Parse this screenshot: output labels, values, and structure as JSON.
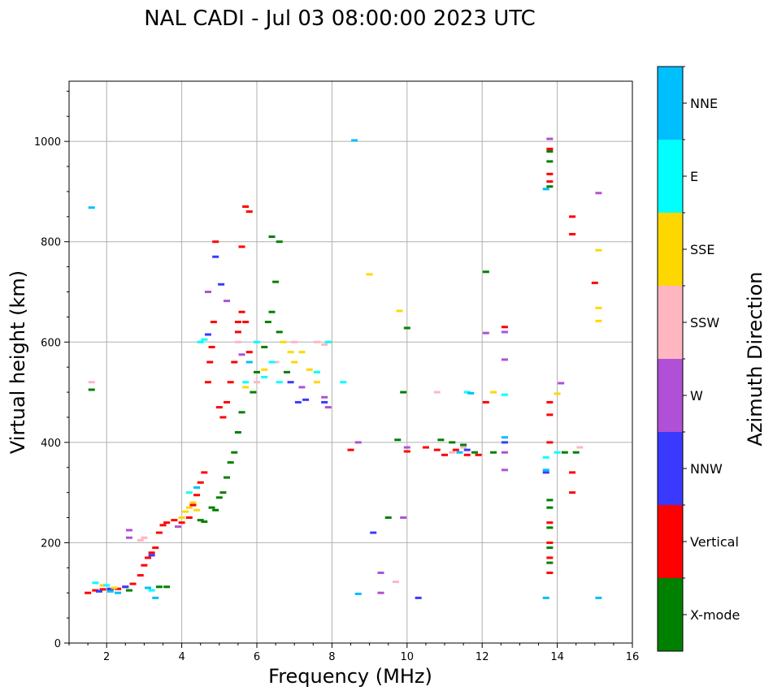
{
  "chart_data": {
    "type": "scatter",
    "title": "NAL CADI - Jul 03 08:00:00 2023 UTC",
    "xlabel": "Frequency (MHz)",
    "ylabel": "Virtual height (km)",
    "xlim": [
      1,
      16
    ],
    "ylim": [
      0,
      1120
    ],
    "xticks": [
      2,
      4,
      6,
      8,
      10,
      12,
      14,
      16
    ],
    "yticks": [
      0,
      200,
      400,
      600,
      800,
      1000
    ],
    "grid": true,
    "colorbar": {
      "label": "Azimuth Direction",
      "categories": [
        {
          "name": "X-mode",
          "color": "#008000"
        },
        {
          "name": "Vertical",
          "color": "#ff0000"
        },
        {
          "name": "NNW",
          "color": "#3a3aff"
        },
        {
          "name": "W",
          "color": "#b050d6"
        },
        {
          "name": "SSW",
          "color": "#ffb6c1"
        },
        {
          "name": "SSE",
          "color": "#ffd700"
        },
        {
          "name": "E",
          "color": "#00ffff"
        },
        {
          "name": "NNE",
          "color": "#00bfff"
        }
      ]
    },
    "series": [
      {
        "name": "Vertical",
        "points": [
          [
            1.5,
            100
          ],
          [
            1.7,
            105
          ],
          [
            1.9,
            107
          ],
          [
            2.1,
            107
          ],
          [
            2.3,
            108
          ],
          [
            2.5,
            112
          ],
          [
            2.7,
            118
          ],
          [
            2.9,
            135
          ],
          [
            3.0,
            155
          ],
          [
            3.1,
            170
          ],
          [
            3.2,
            180
          ],
          [
            3.3,
            190
          ],
          [
            3.4,
            220
          ],
          [
            3.5,
            235
          ],
          [
            3.6,
            240
          ],
          [
            3.8,
            245
          ],
          [
            4.0,
            240
          ],
          [
            4.2,
            250
          ],
          [
            4.3,
            275
          ],
          [
            4.4,
            295
          ],
          [
            4.5,
            320
          ],
          [
            4.6,
            340
          ],
          [
            4.7,
            520
          ],
          [
            4.75,
            560
          ],
          [
            4.8,
            590
          ],
          [
            4.85,
            640
          ],
          [
            4.9,
            800
          ],
          [
            5.0,
            470
          ],
          [
            5.1,
            450
          ],
          [
            5.2,
            480
          ],
          [
            5.3,
            520
          ],
          [
            5.4,
            560
          ],
          [
            5.5,
            640
          ],
          [
            5.6,
            660
          ],
          [
            5.7,
            640
          ],
          [
            5.8,
            580
          ],
          [
            5.6,
            790
          ],
          [
            5.7,
            870
          ],
          [
            5.8,
            860
          ],
          [
            5.5,
            620
          ],
          [
            8.5,
            385
          ],
          [
            10.0,
            382
          ],
          [
            10.5,
            390
          ],
          [
            10.8,
            385
          ],
          [
            11.0,
            375
          ],
          [
            11.3,
            385
          ],
          [
            11.6,
            375
          ],
          [
            11.9,
            375
          ],
          [
            12.1,
            480
          ],
          [
            12.6,
            630
          ],
          [
            13.8,
            935
          ],
          [
            13.8,
            920
          ],
          [
            13.8,
            985
          ],
          [
            13.8,
            480
          ],
          [
            13.8,
            455
          ],
          [
            13.8,
            400
          ],
          [
            13.8,
            240
          ],
          [
            13.8,
            200
          ],
          [
            13.8,
            170
          ],
          [
            13.8,
            140
          ],
          [
            14.4,
            340
          ],
          [
            14.4,
            300
          ],
          [
            14.4,
            815
          ],
          [
            14.4,
            850
          ],
          [
            15.0,
            718
          ]
        ]
      },
      {
        "name": "X-mode",
        "points": [
          [
            1.6,
            505
          ],
          [
            2.6,
            105
          ],
          [
            3.4,
            112
          ],
          [
            3.6,
            112
          ],
          [
            4.5,
            245
          ],
          [
            4.6,
            242
          ],
          [
            4.8,
            270
          ],
          [
            4.9,
            265
          ],
          [
            5.0,
            290
          ],
          [
            5.1,
            300
          ],
          [
            5.2,
            330
          ],
          [
            5.3,
            360
          ],
          [
            5.4,
            380
          ],
          [
            5.5,
            420
          ],
          [
            5.6,
            460
          ],
          [
            5.9,
            500
          ],
          [
            6.0,
            540
          ],
          [
            6.2,
            590
          ],
          [
            6.3,
            640
          ],
          [
            6.4,
            660
          ],
          [
            6.5,
            720
          ],
          [
            6.6,
            620
          ],
          [
            6.4,
            810
          ],
          [
            6.6,
            800
          ],
          [
            6.5,
            560
          ],
          [
            6.8,
            540
          ],
          [
            9.5,
            250
          ],
          [
            9.75,
            405
          ],
          [
            9.9,
            500
          ],
          [
            10.0,
            628
          ],
          [
            10.9,
            405
          ],
          [
            11.2,
            400
          ],
          [
            11.5,
            395
          ],
          [
            11.8,
            380
          ],
          [
            12.1,
            740
          ],
          [
            12.3,
            380
          ],
          [
            13.8,
            980
          ],
          [
            13.8,
            960
          ],
          [
            13.8,
            910
          ],
          [
            13.8,
            285
          ],
          [
            13.8,
            270
          ],
          [
            13.8,
            230
          ],
          [
            13.8,
            190
          ],
          [
            13.8,
            160
          ],
          [
            14.2,
            380
          ],
          [
            14.5,
            380
          ]
        ]
      },
      {
        "name": "NNW",
        "points": [
          [
            1.8,
            103
          ],
          [
            2.1,
            108
          ],
          [
            2.5,
            112
          ],
          [
            3.2,
            175
          ],
          [
            4.7,
            615
          ],
          [
            4.9,
            770
          ],
          [
            5.05,
            715
          ],
          [
            6.9,
            520
          ],
          [
            7.1,
            480
          ],
          [
            7.3,
            485
          ],
          [
            7.8,
            480
          ],
          [
            9.1,
            220
          ],
          [
            10.3,
            90
          ],
          [
            11.6,
            385
          ],
          [
            12.6,
            400
          ],
          [
            13.7,
            340
          ]
        ]
      },
      {
        "name": "W",
        "points": [
          [
            2.6,
            210
          ],
          [
            2.6,
            225
          ],
          [
            3.9,
            232
          ],
          [
            4.7,
            700
          ],
          [
            5.2,
            682
          ],
          [
            5.6,
            575
          ],
          [
            7.2,
            510
          ],
          [
            7.8,
            490
          ],
          [
            7.9,
            470
          ],
          [
            8.7,
            400
          ],
          [
            9.3,
            140
          ],
          [
            9.3,
            100
          ],
          [
            9.9,
            250
          ],
          [
            10.0,
            390
          ],
          [
            12.1,
            618
          ],
          [
            12.6,
            620
          ],
          [
            12.6,
            565
          ],
          [
            12.6,
            380
          ],
          [
            12.6,
            345
          ],
          [
            13.8,
            1005
          ],
          [
            14.1,
            518
          ],
          [
            15.1,
            897
          ]
        ]
      },
      {
        "name": "SSW",
        "points": [
          [
            1.6,
            520
          ],
          [
            2.9,
            205
          ],
          [
            3.0,
            210
          ],
          [
            5.5,
            600
          ],
          [
            6.0,
            520
          ],
          [
            6.5,
            560
          ],
          [
            7.0,
            600
          ],
          [
            7.6,
            600
          ],
          [
            7.8,
            595
          ],
          [
            9.7,
            122
          ],
          [
            10.8,
            500
          ],
          [
            11.2,
            380
          ],
          [
            11.5,
            390
          ],
          [
            14.6,
            390
          ]
        ]
      },
      {
        "name": "SSE",
        "points": [
          [
            1.9,
            115
          ],
          [
            2.2,
            110
          ],
          [
            4.0,
            250
          ],
          [
            4.1,
            262
          ],
          [
            4.2,
            270
          ],
          [
            4.3,
            280
          ],
          [
            4.4,
            265
          ],
          [
            5.7,
            510
          ],
          [
            6.2,
            545
          ],
          [
            6.7,
            600
          ],
          [
            6.9,
            580
          ],
          [
            7.0,
            560
          ],
          [
            7.2,
            580
          ],
          [
            7.4,
            545
          ],
          [
            7.6,
            520
          ],
          [
            9.0,
            735
          ],
          [
            9.8,
            662
          ],
          [
            12.3,
            500
          ],
          [
            14.0,
            497
          ],
          [
            15.1,
            783
          ],
          [
            15.1,
            668
          ],
          [
            15.1,
            642
          ]
        ]
      },
      {
        "name": "E",
        "points": [
          [
            1.7,
            120
          ],
          [
            2.0,
            115
          ],
          [
            3.2,
            105
          ],
          [
            4.2,
            300
          ],
          [
            4.5,
            600
          ],
          [
            4.6,
            605
          ],
          [
            5.7,
            520
          ],
          [
            6.0,
            600
          ],
          [
            6.2,
            530
          ],
          [
            6.4,
            560
          ],
          [
            6.6,
            520
          ],
          [
            7.6,
            540
          ],
          [
            7.9,
            600
          ],
          [
            8.3,
            520
          ],
          [
            11.6,
            500
          ],
          [
            12.6,
            495
          ],
          [
            13.7,
            370
          ],
          [
            14.0,
            380
          ]
        ]
      },
      {
        "name": "NNE",
        "points": [
          [
            1.6,
            868
          ],
          [
            2.1,
            103
          ],
          [
            2.3,
            100
          ],
          [
            3.1,
            110
          ],
          [
            3.3,
            90
          ],
          [
            4.4,
            310
          ],
          [
            5.8,
            560
          ],
          [
            8.6,
            1002
          ],
          [
            8.7,
            98
          ],
          [
            11.4,
            380
          ],
          [
            11.7,
            498
          ],
          [
            12.6,
            410
          ],
          [
            13.7,
            905
          ],
          [
            13.7,
            90
          ],
          [
            13.7,
            345
          ],
          [
            15.1,
            90
          ]
        ]
      }
    ]
  }
}
